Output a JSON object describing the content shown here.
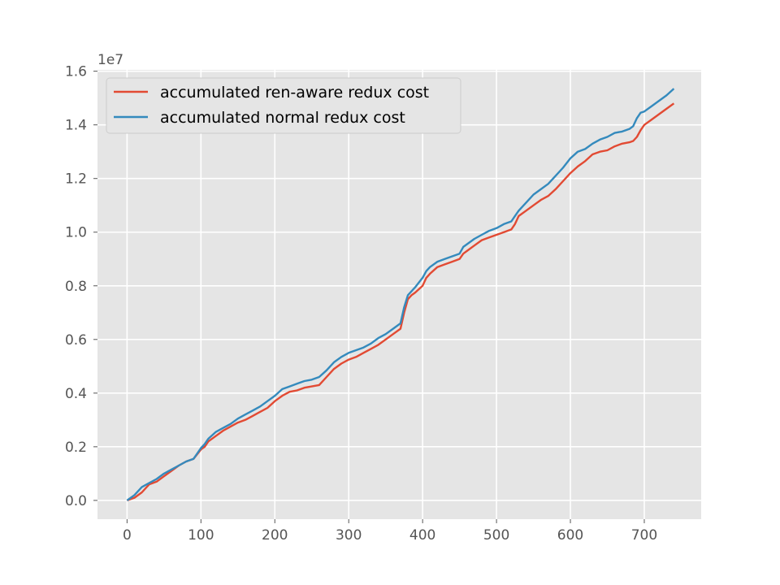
{
  "chart_data": {
    "type": "line",
    "title": "",
    "xlabel": "",
    "ylabel": "",
    "xlim": [
      -40,
      777
    ],
    "ylim": [
      -0.07,
      1.605
    ],
    "y_offset_label": "1e7",
    "xticks": [
      0,
      100,
      200,
      300,
      400,
      500,
      600,
      700
    ],
    "xtick_labels": [
      "0",
      "100",
      "200",
      "300",
      "400",
      "500",
      "600",
      "700"
    ],
    "yticks": [
      0.0,
      0.2,
      0.4,
      0.6,
      0.8,
      1.0,
      1.2,
      1.4,
      1.6
    ],
    "ytick_labels": [
      "0.0",
      "0.2",
      "0.4",
      "0.6",
      "0.8",
      "1.0",
      "1.2",
      "1.4",
      "1.6"
    ],
    "grid": true,
    "legend_position": "upper-left",
    "background": "#e5e5e5",
    "series": [
      {
        "name": "accumulated ren-aware redux cost",
        "color": "#e24a33",
        "x": [
          0,
          10,
          20,
          30,
          40,
          50,
          60,
          70,
          80,
          90,
          100,
          105,
          110,
          120,
          130,
          140,
          150,
          160,
          170,
          180,
          190,
          200,
          210,
          220,
          230,
          240,
          250,
          260,
          270,
          280,
          290,
          300,
          310,
          320,
          330,
          340,
          350,
          360,
          370,
          375,
          380,
          385,
          390,
          400,
          405,
          410,
          420,
          430,
          440,
          450,
          455,
          460,
          470,
          480,
          490,
          500,
          510,
          520,
          525,
          530,
          540,
          550,
          560,
          570,
          580,
          590,
          600,
          610,
          620,
          630,
          640,
          650,
          660,
          670,
          680,
          685,
          690,
          695,
          700,
          710,
          720,
          730,
          740
        ],
        "y": [
          0.0,
          0.01,
          0.03,
          0.06,
          0.07,
          0.09,
          0.11,
          0.13,
          0.145,
          0.155,
          0.19,
          0.2,
          0.22,
          0.24,
          0.26,
          0.275,
          0.29,
          0.3,
          0.315,
          0.33,
          0.345,
          0.37,
          0.39,
          0.405,
          0.41,
          0.42,
          0.425,
          0.43,
          0.46,
          0.49,
          0.51,
          0.525,
          0.535,
          0.55,
          0.565,
          0.58,
          0.6,
          0.62,
          0.64,
          0.7,
          0.75,
          0.765,
          0.775,
          0.8,
          0.83,
          0.845,
          0.87,
          0.88,
          0.89,
          0.9,
          0.92,
          0.93,
          0.95,
          0.97,
          0.98,
          0.99,
          1.0,
          1.01,
          1.03,
          1.06,
          1.08,
          1.1,
          1.12,
          1.135,
          1.16,
          1.19,
          1.22,
          1.245,
          1.265,
          1.29,
          1.3,
          1.305,
          1.32,
          1.33,
          1.335,
          1.34,
          1.355,
          1.38,
          1.4,
          1.42,
          1.44,
          1.46,
          1.48
        ]
      },
      {
        "name": "accumulated normal redux cost",
        "color": "#348abd",
        "x": [
          0,
          10,
          20,
          30,
          40,
          50,
          60,
          70,
          80,
          90,
          100,
          105,
          110,
          120,
          130,
          140,
          150,
          160,
          170,
          180,
          190,
          200,
          210,
          220,
          230,
          240,
          250,
          260,
          270,
          280,
          290,
          300,
          310,
          320,
          330,
          340,
          350,
          360,
          370,
          375,
          380,
          385,
          390,
          400,
          405,
          410,
          420,
          430,
          440,
          450,
          455,
          460,
          470,
          480,
          490,
          500,
          510,
          520,
          525,
          530,
          540,
          550,
          560,
          570,
          580,
          590,
          600,
          610,
          620,
          630,
          640,
          650,
          660,
          670,
          680,
          685,
          690,
          695,
          700,
          710,
          720,
          730,
          740
        ],
        "y": [
          0.0,
          0.02,
          0.05,
          0.065,
          0.08,
          0.1,
          0.115,
          0.13,
          0.145,
          0.155,
          0.195,
          0.21,
          0.23,
          0.255,
          0.27,
          0.285,
          0.305,
          0.32,
          0.335,
          0.35,
          0.37,
          0.39,
          0.415,
          0.425,
          0.435,
          0.445,
          0.45,
          0.46,
          0.485,
          0.515,
          0.535,
          0.55,
          0.56,
          0.57,
          0.585,
          0.605,
          0.62,
          0.64,
          0.66,
          0.72,
          0.765,
          0.78,
          0.795,
          0.83,
          0.855,
          0.87,
          0.89,
          0.9,
          0.91,
          0.92,
          0.945,
          0.955,
          0.975,
          0.99,
          1.005,
          1.015,
          1.03,
          1.04,
          1.06,
          1.08,
          1.11,
          1.14,
          1.16,
          1.18,
          1.21,
          1.24,
          1.275,
          1.3,
          1.31,
          1.33,
          1.345,
          1.355,
          1.37,
          1.375,
          1.385,
          1.395,
          1.425,
          1.445,
          1.45,
          1.47,
          1.49,
          1.51,
          1.535
        ]
      }
    ]
  }
}
